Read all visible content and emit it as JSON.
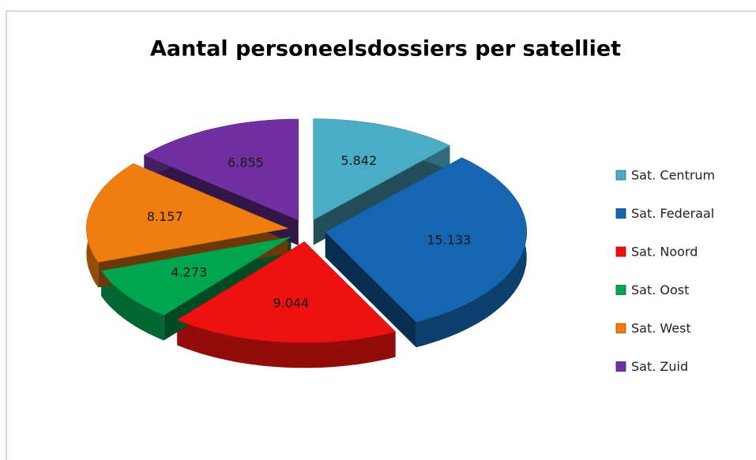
{
  "chart_data": {
    "type": "pie",
    "title": "Aantal personeelsdossiers per satelliet",
    "categories": [
      "Sat. Centrum",
      "Sat. Federaal",
      "Sat. Noord",
      "Sat. Oost",
      "Sat. West",
      "Sat. Zuid"
    ],
    "values": [
      5842,
      15133,
      9044,
      4273,
      8157,
      6855
    ],
    "value_labels": [
      "5.842",
      "15.133",
      "9.044",
      "4.273",
      "8.157",
      "6.855"
    ],
    "colors": [
      "#4bacc6",
      "#1565b0",
      "#ee1111",
      "#00a550",
      "#f07d0f",
      "#7030a0"
    ],
    "legend": "right",
    "exploded": true,
    "three_d": true
  }
}
